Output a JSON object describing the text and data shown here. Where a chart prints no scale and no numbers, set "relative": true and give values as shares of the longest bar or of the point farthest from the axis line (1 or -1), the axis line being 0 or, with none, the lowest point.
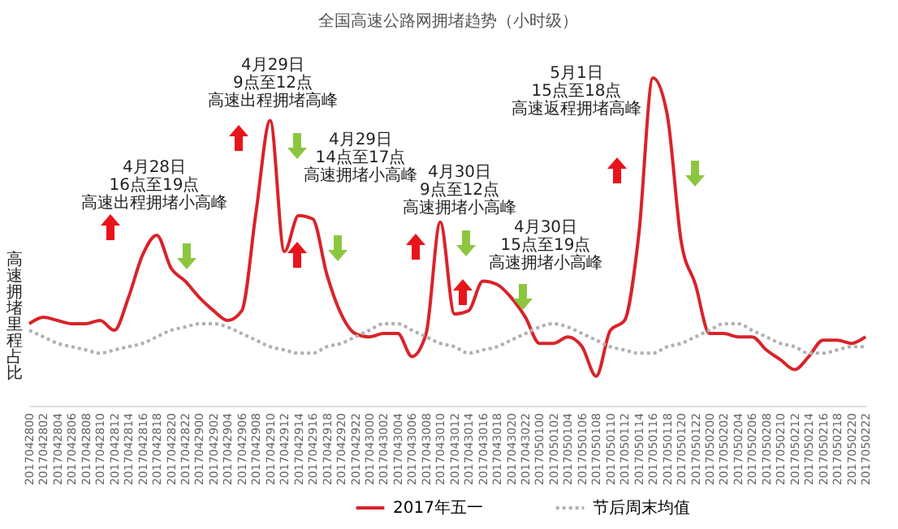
{
  "chart_data": {
    "type": "line",
    "title": "全国高速公路网拥堵趋势（小时级）",
    "ylabel": "高速拥堵里程占比",
    "relative": true,
    "categories": [
      "2017042800",
      "2017042802",
      "2017042804",
      "2017042806",
      "2017042808",
      "2017042810",
      "2017042812",
      "2017042814",
      "2017042816",
      "2017042818",
      "2017042820",
      "2017042822",
      "2017042900",
      "2017042902",
      "2017042904",
      "2017042906",
      "2017042908",
      "2017042910",
      "2017042912",
      "2017042914",
      "2017042916",
      "2017042918",
      "2017042920",
      "2017042922",
      "2017043000",
      "2017043002",
      "2017043004",
      "2017043006",
      "2017043008",
      "2017043010",
      "2017043012",
      "2017043014",
      "2017043016",
      "2017043018",
      "2017043020",
      "2017043022",
      "2017050100",
      "2017050102",
      "2017050104",
      "2017050106",
      "2017050108",
      "2017050110",
      "2017050112",
      "2017050114",
      "2017050116",
      "2017050118",
      "2017050120",
      "2017050122",
      "2017050200",
      "2017050202",
      "2017050204",
      "2017050206",
      "2017050208",
      "2017050210",
      "2017050212",
      "2017050214",
      "2017050216",
      "2017050218",
      "2017050220",
      "2017050222"
    ],
    "series": [
      {
        "name": "2017年五一",
        "color": "#d9232a",
        "line_style": "solid",
        "values": [
          0.25,
          0.27,
          0.26,
          0.25,
          0.25,
          0.26,
          0.23,
          0.33,
          0.46,
          0.52,
          0.42,
          0.38,
          0.33,
          0.29,
          0.26,
          0.29,
          0.59,
          0.87,
          0.47,
          0.58,
          0.57,
          0.4,
          0.28,
          0.22,
          0.21,
          0.22,
          0.22,
          0.15,
          0.22,
          0.56,
          0.28,
          0.29,
          0.38,
          0.37,
          0.33,
          0.27,
          0.19,
          0.19,
          0.21,
          0.18,
          0.09,
          0.23,
          0.26,
          0.52,
          1,
          0.89,
          0.5,
          0.37,
          0.22,
          0.22,
          0.21,
          0.21,
          0.17,
          0.14,
          0.11,
          0.15,
          0.2,
          0.2,
          0.19,
          0.21
        ]
      },
      {
        "name": "节后周末均值",
        "color": "#b0b0b0",
        "line_style": "dotted",
        "values": [
          0.23,
          0.21,
          0.19,
          0.18,
          0.17,
          0.16,
          0.17,
          0.18,
          0.19,
          0.21,
          0.23,
          0.24,
          0.25,
          0.25,
          0.24,
          0.22,
          0.2,
          0.18,
          0.17,
          0.16,
          0.16,
          0.18,
          0.19,
          0.21,
          0.23,
          0.25,
          0.25,
          0.23,
          0.21,
          0.19,
          0.18,
          0.16,
          0.17,
          0.18,
          0.2,
          0.22,
          0.24,
          0.25,
          0.24,
          0.22,
          0.2,
          0.18,
          0.17,
          0.16,
          0.16,
          0.18,
          0.19,
          0.21,
          0.23,
          0.25,
          0.25,
          0.23,
          0.21,
          0.19,
          0.18,
          0.16,
          0.16,
          0.17,
          0.18,
          0.18
        ]
      }
    ],
    "annotations": [
      "4月28日16点至19点高速出程拥堵小高峰",
      "4月29日9点至12点高速出程拥堵高峰",
      "4月29日14点至17点高速拥堵小高峰",
      "4月30日9点至12点高速拥堵小高峰",
      "4月30日15点至19点高速拥堵小高峰",
      "5月1日15点至18点高速返程拥堵高峰"
    ],
    "legend": "bottom"
  }
}
